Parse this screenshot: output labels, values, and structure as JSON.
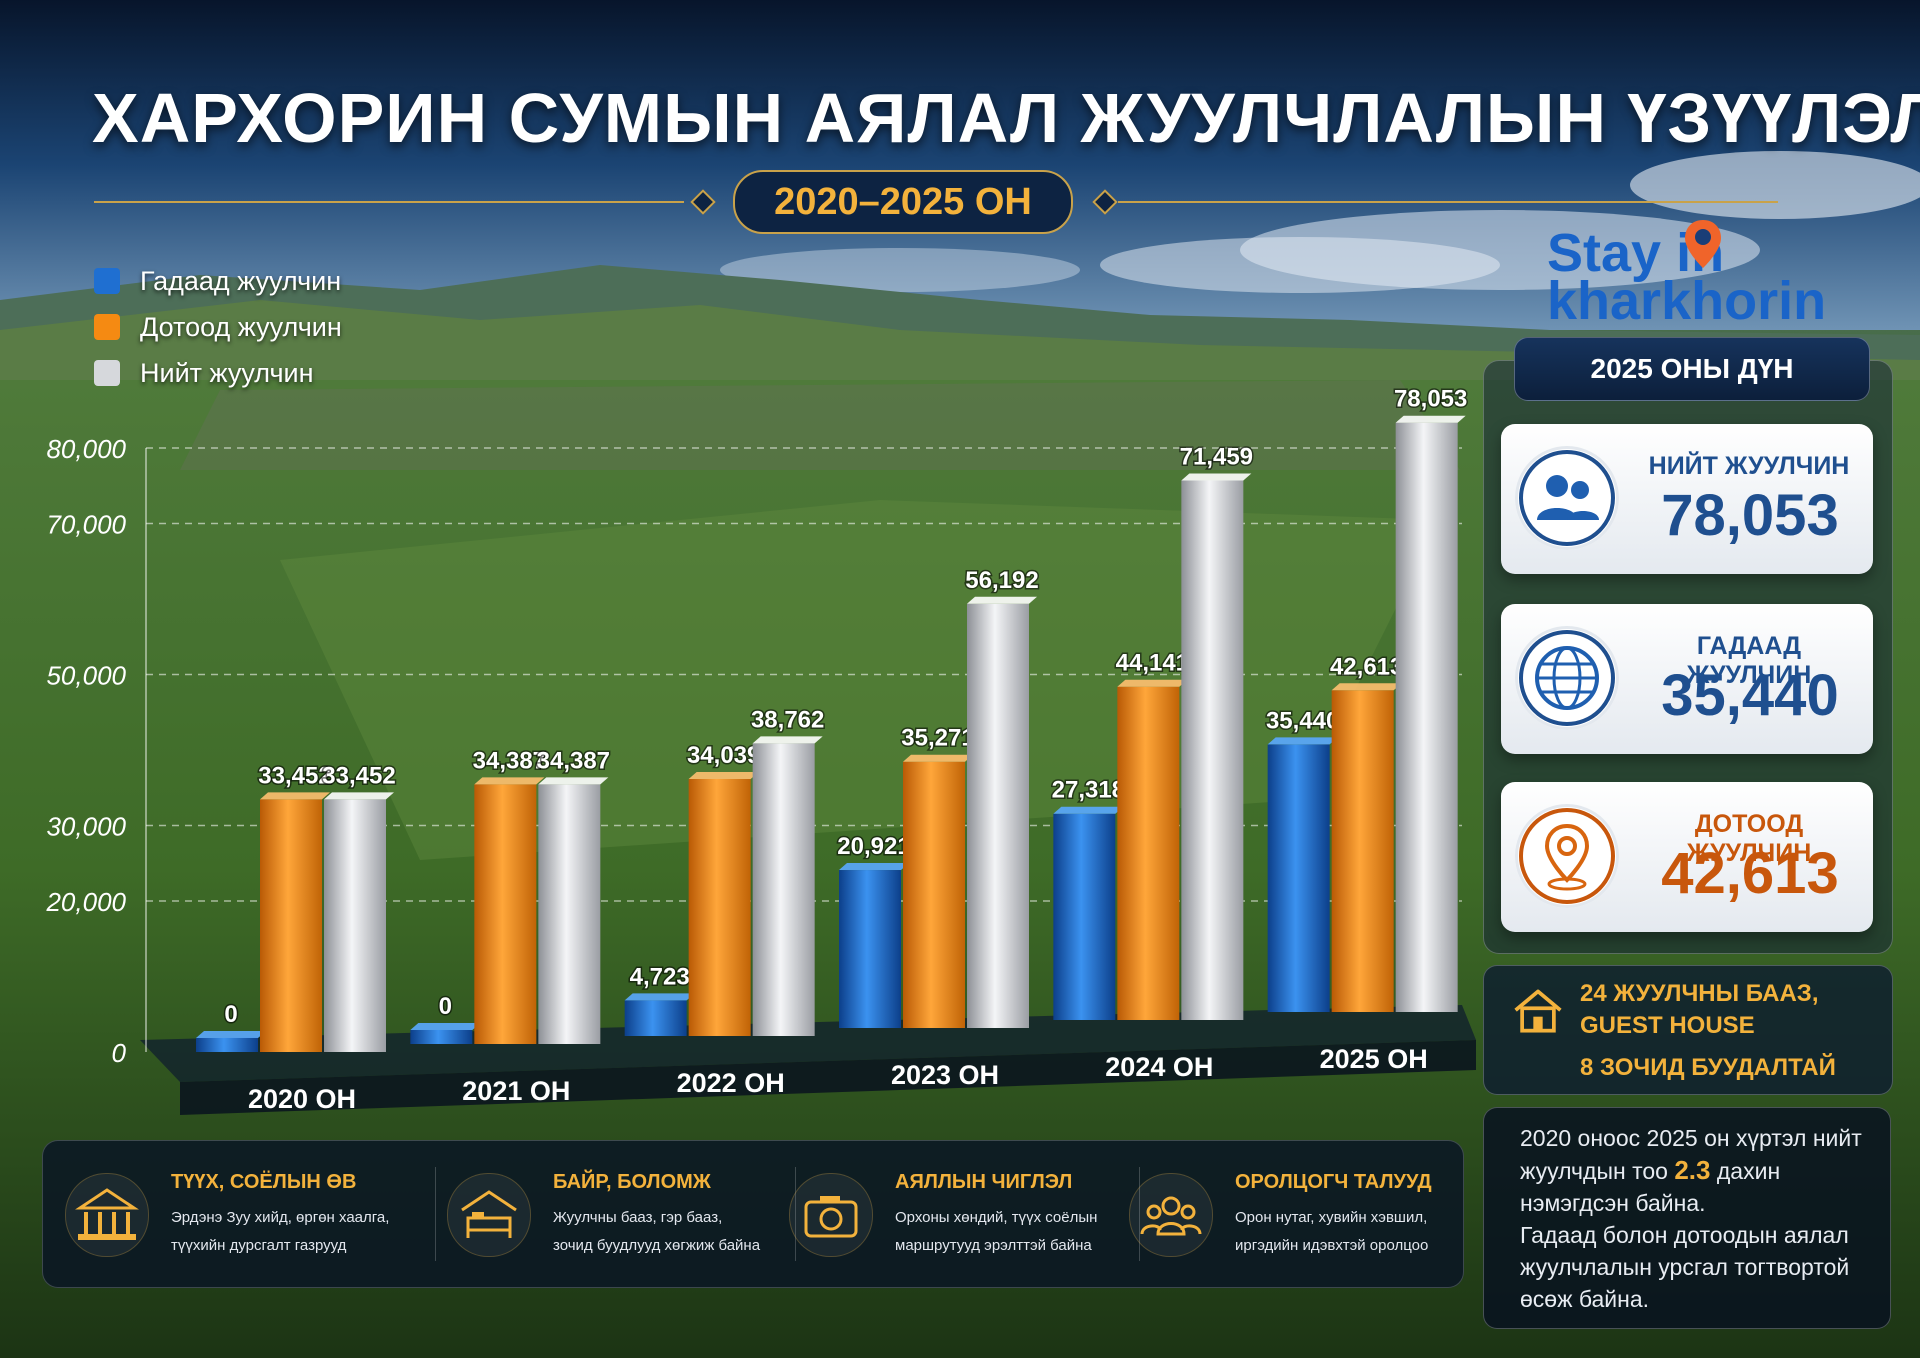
{
  "title": "ХАРХОРИН СУМЫН АЯЛАЛ ЖУУЛЧЛАЛЫН ҮЗҮҮЛЭЛТ",
  "subtitle": "2020–2025 ОН",
  "colors": {
    "foreign": "#1f6fd1",
    "domestic": "#f58a12",
    "total": "#d6d8dc",
    "accent": "#f3b23c"
  },
  "logo": {
    "line1": "Stay in",
    "line2": "kharkhorin"
  },
  "chart_data": {
    "type": "bar",
    "categories": [
      "2020 ОН",
      "2021 ОН",
      "2022 ОН",
      "2023 ОН",
      "2024 ОН",
      "2025 ОН"
    ],
    "series": [
      {
        "name": "Гадаад жуулчин",
        "values": [
          0,
          0,
          4723,
          20921,
          27318,
          35440
        ]
      },
      {
        "name": "Дотоод жуулчин",
        "values": [
          33452,
          34387,
          34039,
          35271,
          44141,
          42613
        ]
      },
      {
        "name": "Нийт жуулчин",
        "values": [
          33452,
          34387,
          38762,
          56192,
          71459,
          78053
        ]
      }
    ],
    "labels": [
      [
        "0",
        "0",
        "4,723",
        "20,921",
        "27,318",
        "35,440"
      ],
      [
        "33,452",
        "34,387",
        "34,039",
        "35,271",
        "44,141",
        "42,613"
      ],
      [
        "33,452",
        "34,387",
        "38,762",
        "56,192",
        "71,459",
        "78,053"
      ]
    ],
    "yticks": [
      {
        "value": 0,
        "label": "0"
      },
      {
        "value": 20000,
        "label": "20,000"
      },
      {
        "value": 30000,
        "label": "30,000"
      },
      {
        "value": 50000,
        "label": "50,000"
      },
      {
        "value": 70000,
        "label": "70,000"
      },
      {
        "value": 80000,
        "label": "80,000"
      }
    ],
    "ylim": [
      0,
      80000
    ],
    "legend": "top-left",
    "grid": true
  },
  "summary": {
    "header": "2025 ОНЫ ДҮН",
    "cards": [
      {
        "label": "НИЙТ ЖУУЛЧИН",
        "value": "78,053",
        "icon": "people-icon",
        "color": "#1f4f8f"
      },
      {
        "label": "ГАДААД ЖУУЛЧИН",
        "value": "35,440",
        "icon": "globe-icon",
        "color": "#1f4f8f"
      },
      {
        "label": "ДОТООД ЖУУЛЧИН",
        "value": "42,613",
        "icon": "map-pin-icon",
        "color": "#c8570c"
      }
    ]
  },
  "facility": {
    "icon": "house-icon",
    "line1": "24 ЖУУЛЧНЫ БААЗ,",
    "line2": "GUEST HOUSE",
    "line3": "8 ЗОЧИД БУУДАЛТАЙ"
  },
  "note": {
    "p1_before": "2020 оноос 2025 он хүртэл нийт жуулчдын тоо ",
    "p1_highlight": "2.3",
    "p1_after": " дахин нэмэгдсэн байна.",
    "p2": "Гадаад болон дотоодын аялал жуулчлалын урсгал тогтвортой өсөж байна."
  },
  "features": [
    {
      "icon": "temple-icon",
      "heading": "ТҮҮХ, СОЁЛЫН ӨВ",
      "line1": "Эрдэнэ Зуу хийд, өргөн хаалга,",
      "line2": "түүхийн дурсгалт газрууд"
    },
    {
      "icon": "bed-icon",
      "heading": "БАЙР, БОЛОМЖ",
      "line1": "Жуулчны бааз, гэр бааз,",
      "line2": "зочид буудлууд хөгжиж байна"
    },
    {
      "icon": "camera-icon",
      "heading": "АЯЛЛЫН ЧИГЛЭЛ",
      "line1": "Орхоны хөндий, түүх соёлын",
      "line2": "маршрутууд эрэлттэй байна"
    },
    {
      "icon": "group-icon",
      "heading": "ОРОЛЦОГЧ ТАЛУУД",
      "line1": "Орон нутаг, хувийн хэвшил,",
      "line2": "иргэдийн идэвхтэй оролцоо"
    }
  ]
}
